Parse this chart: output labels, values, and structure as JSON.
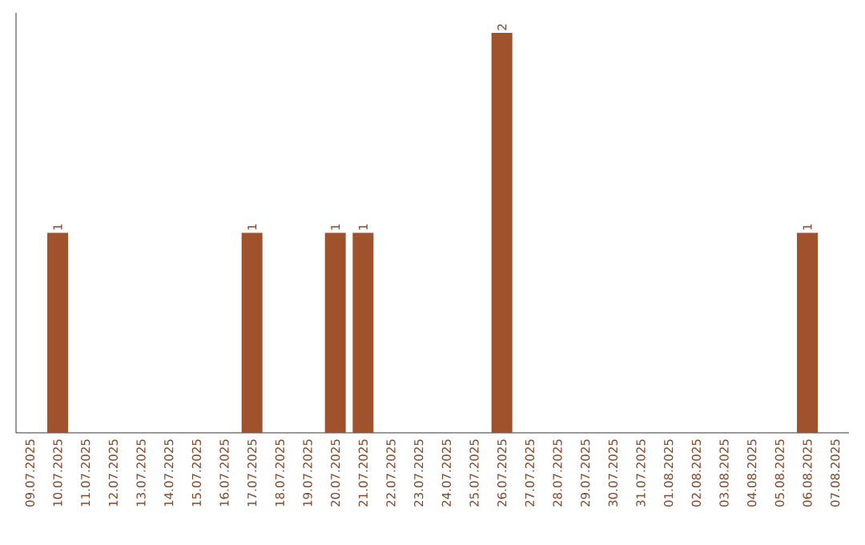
{
  "chart_data": {
    "type": "bar",
    "categories": [
      "09.07.2025",
      "10.07.2025",
      "11.07.2025",
      "12.07.2025",
      "13.07.2025",
      "14.07.2025",
      "15.07.2025",
      "16.07.2025",
      "17.07.2025",
      "18.07.2025",
      "19.07.2025",
      "20.07.2025",
      "21.07.2025",
      "22.07.2025",
      "23.07.2025",
      "24.07.2025",
      "25.07.2025",
      "26.07.2025",
      "27.07.2025",
      "28.07.2025",
      "29.07.2025",
      "30.07.2025",
      "31.07.2025",
      "01.08.2025",
      "02.08.2025",
      "03.08.2025",
      "04.08.2025",
      "05.08.2025",
      "06.08.2025",
      "07.08.2025"
    ],
    "values": [
      0,
      1,
      0,
      0,
      0,
      0,
      0,
      0,
      1,
      0,
      0,
      1,
      1,
      0,
      0,
      0,
      0,
      2,
      0,
      0,
      0,
      0,
      0,
      0,
      0,
      0,
      0,
      0,
      1,
      0
    ],
    "value_labels": [
      null,
      "1",
      null,
      null,
      null,
      null,
      null,
      null,
      "1",
      null,
      null,
      "1",
      "1",
      null,
      null,
      null,
      null,
      "2",
      null,
      null,
      null,
      null,
      null,
      null,
      null,
      null,
      null,
      null,
      "1",
      null
    ],
    "color": "#a0522d",
    "ylim": [
      0,
      2
    ],
    "tick_labels": "x",
    "grid": false
  }
}
